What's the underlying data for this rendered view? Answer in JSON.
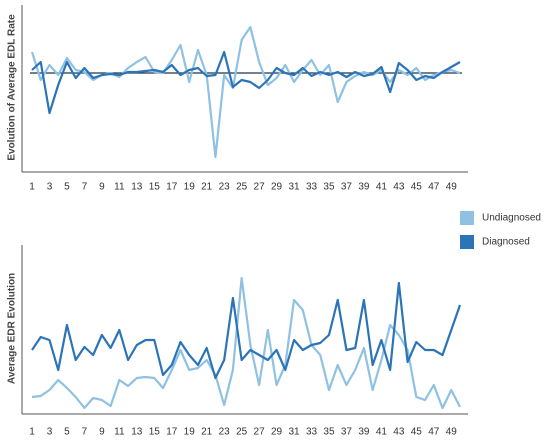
{
  "chart_data": [
    {
      "type": "line",
      "ylabel": "Evolution of Average EDL Rate",
      "x": [
        1,
        2,
        3,
        4,
        5,
        6,
        7,
        8,
        9,
        10,
        11,
        12,
        13,
        14,
        15,
        16,
        17,
        18,
        19,
        20,
        21,
        22,
        23,
        24,
        25,
        26,
        27,
        28,
        29,
        30,
        31,
        32,
        33,
        34,
        35,
        36,
        37,
        38,
        39,
        40,
        41,
        42,
        43,
        44,
        45,
        46,
        47,
        48,
        49,
        50
      ],
      "xlim": [
        1,
        50
      ],
      "xticks": [
        1,
        3,
        5,
        7,
        9,
        11,
        13,
        15,
        17,
        19,
        21,
        23,
        25,
        27,
        29,
        31,
        33,
        35,
        37,
        39,
        41,
        43,
        45,
        47,
        49
      ],
      "ylim": [
        -97,
        68
      ],
      "zero_line": true,
      "series": [
        {
          "color": "#8fc1e3",
          "values": [
            21,
            -7,
            8,
            -2,
            15,
            3,
            1,
            -7,
            -2,
            0,
            -4,
            5,
            11,
            16,
            1,
            0,
            13,
            28,
            -9,
            23,
            -2,
            -84,
            -2,
            -15,
            33,
            46,
            11,
            -12,
            -5,
            8,
            -9,
            3,
            13,
            -2,
            8,
            -29,
            -9,
            -3,
            1,
            -2,
            3,
            -9,
            3,
            -2,
            5,
            -7,
            -2,
            1,
            3,
            0
          ]
        },
        {
          "color": "#2b74b6",
          "values": [
            3,
            11,
            -40,
            -12,
            11,
            -5,
            5,
            -5,
            -2,
            -1,
            -2,
            1,
            1,
            2,
            3,
            1,
            8,
            -2,
            3,
            5,
            -3,
            -2,
            21,
            -14,
            -7,
            -9,
            -15,
            -7,
            5,
            0,
            -2,
            5,
            -3,
            1,
            -2,
            1,
            -4,
            1,
            -3,
            -1,
            6,
            -19,
            10,
            3,
            -7,
            -3,
            -5,
            1,
            6,
            11
          ]
        }
      ]
    },
    {
      "type": "line",
      "ylabel": "Average EDR Evolution",
      "x": [
        1,
        2,
        3,
        4,
        5,
        6,
        7,
        8,
        9,
        10,
        11,
        12,
        13,
        14,
        15,
        16,
        17,
        18,
        19,
        20,
        21,
        22,
        23,
        24,
        25,
        26,
        27,
        28,
        29,
        30,
        31,
        32,
        33,
        34,
        35,
        36,
        37,
        38,
        39,
        40,
        41,
        42,
        43,
        44,
        45,
        46,
        47,
        48,
        49,
        50
      ],
      "xlim": [
        1,
        50
      ],
      "xticks": [
        1,
        3,
        5,
        7,
        9,
        11,
        13,
        15,
        17,
        19,
        21,
        23,
        25,
        27,
        29,
        31,
        33,
        35,
        37,
        39,
        41,
        43,
        45,
        47,
        49
      ],
      "ylim": [
        0,
        167
      ],
      "series": [
        {
          "name": "Undiagnosed",
          "color": "#8fc1e3",
          "values": [
            15,
            16,
            22,
            32,
            24,
            15,
            4,
            14,
            12,
            6,
            32,
            26,
            34,
            35,
            34,
            24,
            42,
            62,
            42,
            44,
            52,
            37,
            7,
            42,
            134,
            67,
            27,
            82,
            27,
            47,
            112,
            102,
            67,
            57,
            22,
            47,
            27,
            42,
            64,
            22,
            52,
            87,
            77,
            62,
            15,
            12,
            27,
            4,
            22,
            5
          ]
        },
        {
          "name": "Diagnosed",
          "color": "#2b74b6",
          "values": [
            62,
            75,
            72,
            42,
            87,
            52,
            65,
            57,
            77,
            64,
            82,
            52,
            67,
            72,
            72,
            37,
            47,
            70,
            57,
            47,
            64,
            34,
            52,
            114,
            52,
            62,
            57,
            52,
            62,
            42,
            72,
            62,
            67,
            69,
            77,
            112,
            62,
            64,
            112,
            47,
            72,
            42,
            129,
            50,
            70,
            62,
            62,
            57,
            82,
            107
          ]
        }
      ]
    }
  ]
}
